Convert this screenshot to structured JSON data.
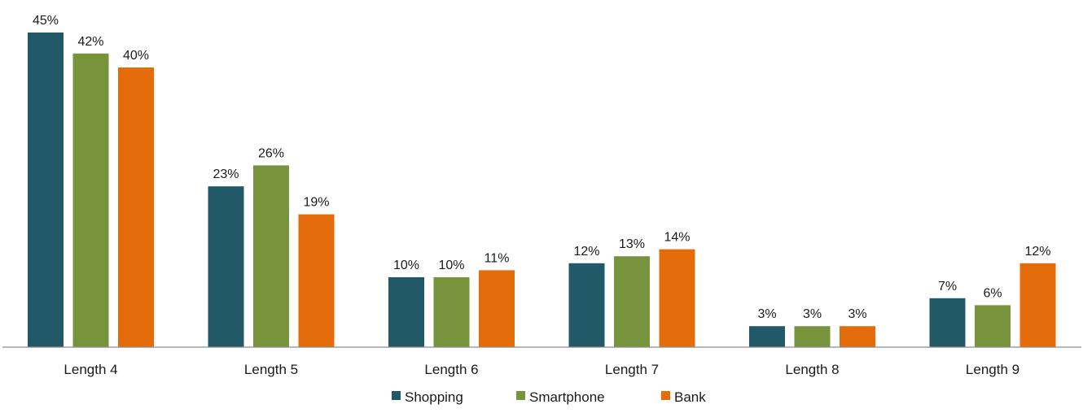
{
  "chart_data": {
    "type": "bar",
    "categories": [
      "Length 4",
      "Length 5",
      "Length 6",
      "Length 7",
      "Length 8",
      "Length 9"
    ],
    "series": [
      {
        "name": "Shopping",
        "color": "#215968",
        "values": [
          45,
          23,
          10,
          12,
          3,
          7
        ],
        "labels": [
          "45%",
          "23%",
          "10%",
          "12%",
          "3%",
          "7%"
        ]
      },
      {
        "name": "Smartphone",
        "color": "#77933C",
        "values": [
          42,
          26,
          10,
          13,
          3,
          6
        ],
        "labels": [
          "42%",
          "26%",
          "10%",
          "13%",
          "3%",
          "6%"
        ]
      },
      {
        "name": "Bank",
        "color": "#E46C0A",
        "values": [
          40,
          19,
          11,
          14,
          3,
          12
        ],
        "labels": [
          "40%",
          "19%",
          "11%",
          "14%",
          "3%",
          "12%"
        ]
      }
    ],
    "title": "",
    "xlabel": "",
    "ylabel": "",
    "ylim": [
      0,
      45
    ],
    "grid": false,
    "legend": "bottom"
  }
}
